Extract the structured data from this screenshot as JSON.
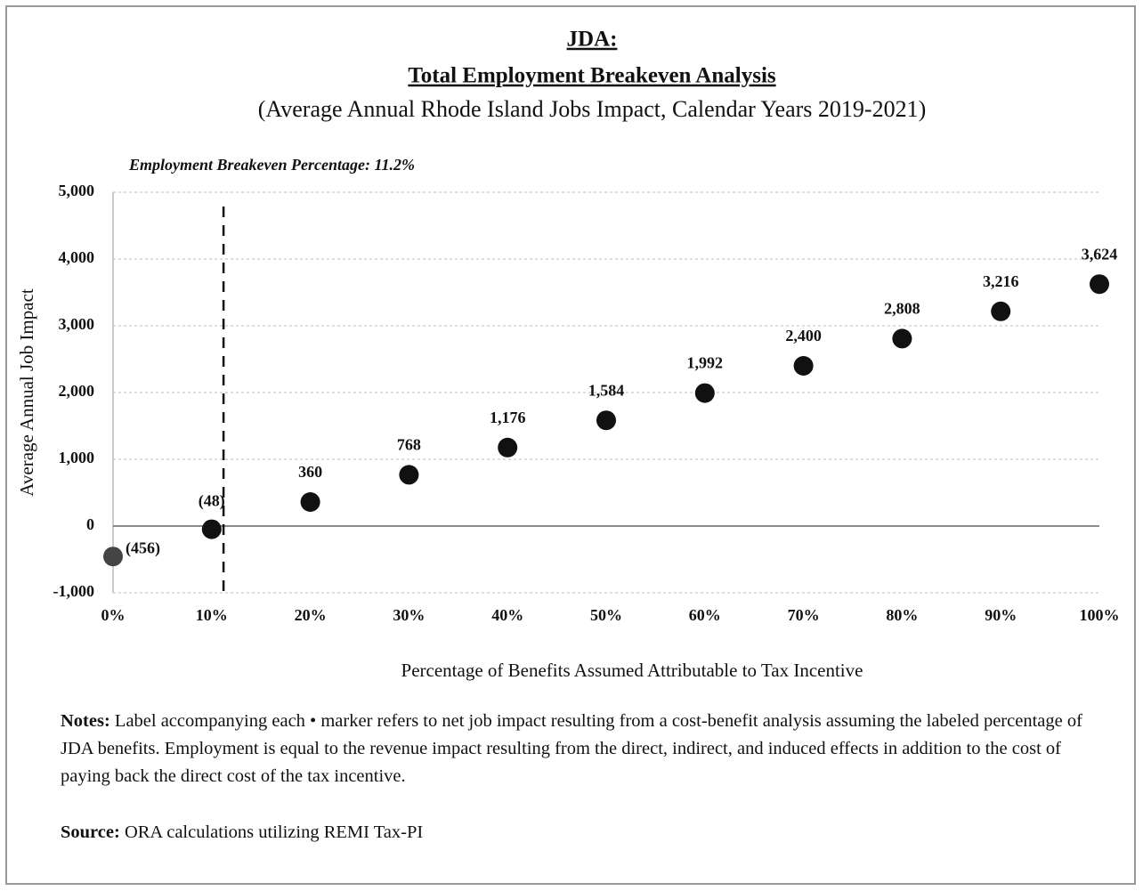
{
  "chart_data": {
    "type": "scatter",
    "title": "JDA:",
    "title2": "Total Employment Breakeven Analysis",
    "subtitle": "(Average Annual Rhode Island Jobs Impact, Calendar Years 2019-2021)",
    "annotation": "Employment Breakeven Percentage: 11.2%",
    "breakeven_x": 11.2,
    "x_label": "Percentage of Benefits Assumed Attributable to Tax Incentive",
    "y_label": "Average Annual Job Impact",
    "x": [
      0,
      10,
      20,
      30,
      40,
      50,
      60,
      70,
      80,
      90,
      100
    ],
    "values": [
      -456,
      -48,
      360,
      768,
      1176,
      1584,
      1992,
      2400,
      2808,
      3216,
      3624
    ],
    "value_labels": [
      "(456)",
      "(48)",
      "360",
      "768",
      "1,176",
      "1,584",
      "1,992",
      "2,400",
      "2,808",
      "3,216",
      "3,624"
    ],
    "color": "#111111",
    "xlim": [
      0,
      100
    ],
    "xticks": [
      {
        "value": 0,
        "label": "0%"
      },
      {
        "value": 10,
        "label": "10%"
      },
      {
        "value": 20,
        "label": "20%"
      },
      {
        "value": 30,
        "label": "30%"
      },
      {
        "value": 40,
        "label": "40%"
      },
      {
        "value": 50,
        "label": "50%"
      },
      {
        "value": 60,
        "label": "60%"
      },
      {
        "value": 70,
        "label": "70%"
      },
      {
        "value": 80,
        "label": "80%"
      },
      {
        "value": 90,
        "label": "90%"
      },
      {
        "value": 100,
        "label": "100%"
      }
    ],
    "ylim": [
      -1000,
      5000
    ],
    "yticks": [
      {
        "value": -1000,
        "label": "-1,000"
      },
      0,
      {
        "value": 1000,
        "label": "1,000"
      },
      {
        "value": 2000,
        "label": "2,000"
      },
      {
        "value": 3000,
        "label": "3,000"
      },
      {
        "value": 4000,
        "label": "4,000"
      },
      {
        "value": 5000,
        "label": "5,000"
      }
    ],
    "grid": true,
    "notes_label": "Notes:",
    "notes_text": "Label accompanying each • marker refers to net job impact resulting from a cost-benefit analysis assuming the labeled percentage of JDA benefits. Employment is equal to the revenue impact resulting from the direct, indirect, and induced effects in addition to the cost of paying back the direct cost of the tax incentive.",
    "source_label": "Source:",
    "source_text": "ORA calculations utilizing REMI Tax-PI"
  }
}
